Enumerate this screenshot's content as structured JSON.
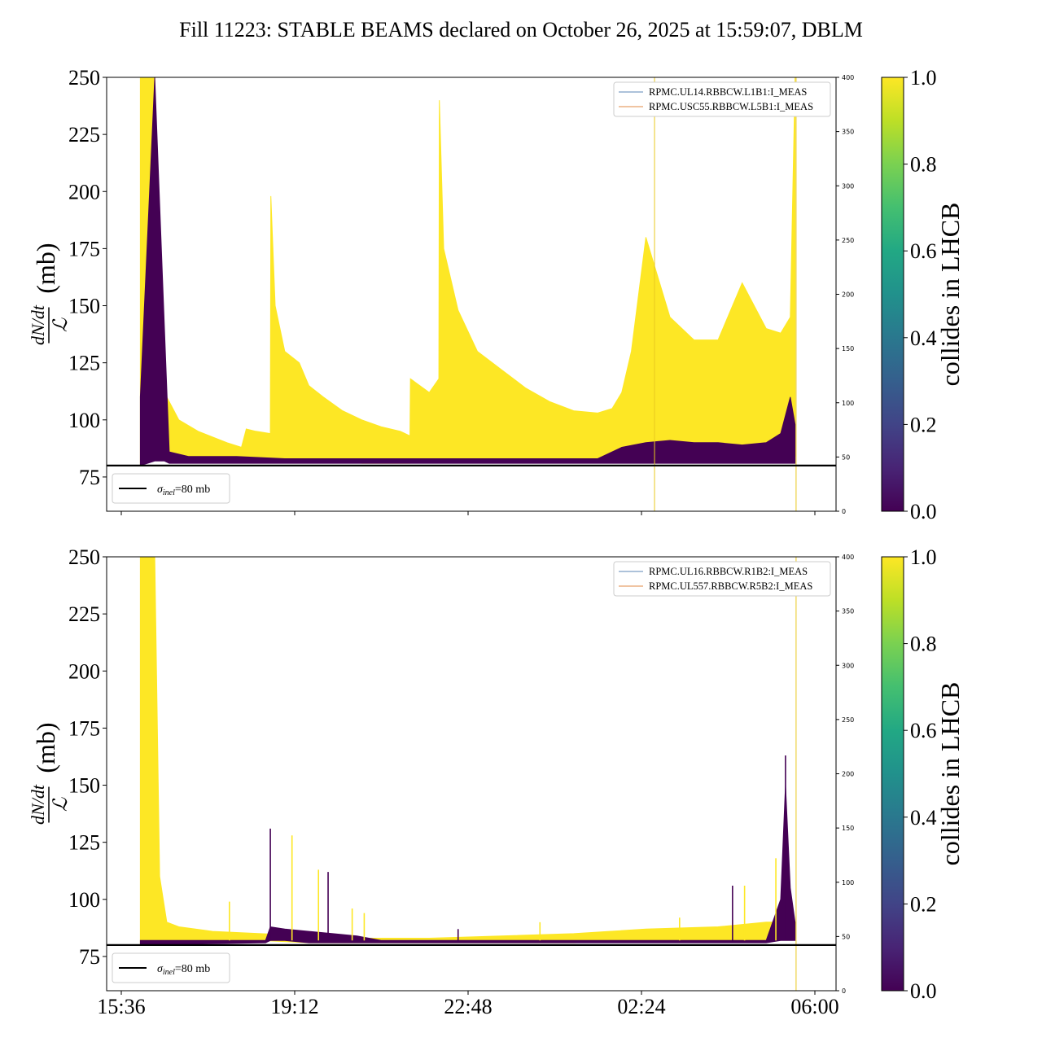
{
  "title": "Fill 11223: STABLE BEAMS declared on October 26, 2025 at 15:59:07, DBLM",
  "x_ticks": [
    "15:36",
    "19:12",
    "22:48",
    "02:24",
    "06:00"
  ],
  "colorbar": {
    "label": "collides in LHCB",
    "ticks": [
      "0.0",
      "0.2",
      "0.4",
      "0.6",
      "0.8",
      "1.0"
    ],
    "colormap": "viridis"
  },
  "chart_data": [
    {
      "type": "line",
      "panel": "top",
      "ylabel_num": "dN/dt",
      "ylabel_den": "ℒ",
      "ylabel_unit": "(mb)",
      "ylim": [
        60,
        250
      ],
      "yticks": [
        75,
        100,
        125,
        150,
        175,
        200,
        225,
        250
      ],
      "y2lim": [
        0,
        400
      ],
      "y2ticks": [
        0,
        50,
        100,
        150,
        200,
        250,
        300,
        350,
        400
      ],
      "xlim_hours": [
        15.3,
        30.45
      ],
      "legend": [
        "RPMC.UL14.RBBCW.L1B1:I_MEAS",
        "RPMC.USC55.RBBCW.L5B1:I_MEAS"
      ],
      "reference_line": {
        "value": 80,
        "label_sym": "σ",
        "label_sub": "inel",
        "label_rest": "=80 mb"
      },
      "yellow_envelope": {
        "t": [
          16.0,
          16.1,
          16.3,
          16.4,
          16.55,
          16.8,
          17.2,
          17.8,
          18.1,
          18.2,
          18.4,
          18.7,
          18.71,
          18.8,
          19.0,
          19.3,
          19.5,
          19.8,
          20.2,
          20.6,
          21.0,
          21.4,
          21.6,
          21.61,
          22.0,
          22.2,
          22.21,
          22.3,
          22.6,
          23.0,
          23.5,
          24.0,
          24.5,
          25.0,
          25.5,
          25.8,
          26.0,
          26.2,
          26.5,
          27.0,
          27.5,
          28.0,
          28.5,
          29.0,
          29.3,
          29.5,
          29.6
        ],
        "upper": [
          250,
          250,
          250,
          140,
          110,
          100,
          95,
          90,
          88,
          96,
          95,
          94,
          198,
          150,
          130,
          125,
          115,
          110,
          104,
          100,
          97,
          95,
          93,
          118,
          112,
          118,
          240,
          175,
          148,
          130,
          122,
          114,
          108,
          104,
          103,
          105,
          112,
          130,
          180,
          145,
          135,
          135,
          160,
          140,
          138,
          145,
          250
        ],
        "lower": [
          80,
          82,
          85,
          84,
          83,
          83,
          82,
          82,
          82,
          82,
          82,
          82,
          82,
          82,
          82,
          82,
          82,
          82,
          82,
          81,
          81,
          81,
          81,
          82,
          82,
          82,
          82,
          82,
          82,
          82,
          82,
          82,
          82,
          82,
          82,
          82,
          82,
          83,
          83,
          83,
          83,
          83,
          83,
          83,
          83,
          83,
          84
        ]
      },
      "purple_envelope": {
        "t": [
          16.0,
          16.3,
          16.5,
          16.6,
          17.0,
          18.0,
          19.0,
          20.0,
          22.0,
          24.0,
          25.5,
          26.0,
          26.5,
          27.0,
          27.5,
          28.0,
          28.5,
          29.0,
          29.3,
          29.5,
          29.6
        ],
        "upper": [
          110,
          250,
          140,
          86,
          84,
          84,
          83,
          83,
          83,
          83,
          83,
          88,
          90,
          91,
          90,
          90,
          89,
          90,
          94,
          110,
          98
        ],
        "lower": [
          80,
          82,
          82,
          81,
          81,
          81,
          81,
          81,
          81,
          81,
          81,
          81,
          81,
          81,
          81,
          81,
          81,
          81,
          81,
          81,
          81
        ]
      },
      "vlines_hours": [
        26.68,
        29.62
      ]
    },
    {
      "type": "line",
      "panel": "bottom",
      "ylabel_num": "dN/dt",
      "ylabel_den": "ℒ",
      "ylabel_unit": "(mb)",
      "ylim": [
        60,
        250
      ],
      "yticks": [
        75,
        100,
        125,
        150,
        175,
        200,
        225,
        250
      ],
      "y2lim": [
        0,
        400
      ],
      "y2ticks": [
        0,
        50,
        100,
        150,
        200,
        250,
        300,
        350,
        400
      ],
      "xlim_hours": [
        15.3,
        30.45
      ],
      "legend": [
        "RPMC.UL16.RBBCW.R1B2:I_MEAS",
        "RPMC.UL557.RBBCW.R5B2:I_MEAS"
      ],
      "reference_line": {
        "value": 80,
        "label_sym": "σ",
        "label_sub": "inel",
        "label_rest": "=80 mb"
      },
      "yellow_envelope": {
        "t": [
          16.0,
          16.1,
          16.3,
          16.4,
          16.55,
          16.8,
          17.5,
          18.5,
          19.5,
          20.5,
          22.0,
          23.5,
          25.0,
          26.5,
          28.0,
          29.0,
          29.6
        ],
        "upper": [
          250,
          250,
          250,
          110,
          90,
          88,
          86,
          85,
          84,
          83,
          83,
          84,
          85,
          87,
          88,
          90,
          90
        ],
        "lower": [
          80,
          82,
          82,
          82,
          82,
          82,
          82,
          82,
          81,
          81,
          81,
          81,
          81,
          82,
          82,
          82,
          83
        ]
      },
      "purple_envelope": {
        "t": [
          16.0,
          18.6,
          18.7,
          19.0,
          19.5,
          20.0,
          20.5,
          21.0,
          29.0,
          29.3,
          29.4,
          29.5,
          29.6
        ],
        "upper": [
          82,
          82,
          88,
          87,
          86,
          85,
          84,
          82,
          82,
          100,
          150,
          105,
          90
        ],
        "lower": [
          80,
          81,
          82,
          82,
          81,
          81,
          81,
          81,
          81,
          82,
          82,
          82,
          82
        ]
      },
      "spikes": {
        "t": [
          17.85,
          18.7,
          19.15,
          19.7,
          19.9,
          20.4,
          20.65,
          22.6,
          24.3,
          27.2,
          28.3,
          28.55,
          29.2,
          29.4
        ],
        "y": [
          99,
          131,
          128,
          113,
          112,
          96,
          94,
          87,
          90,
          92,
          106,
          106,
          118,
          163
        ]
      },
      "vlines_hours": [
        29.62
      ]
    }
  ]
}
